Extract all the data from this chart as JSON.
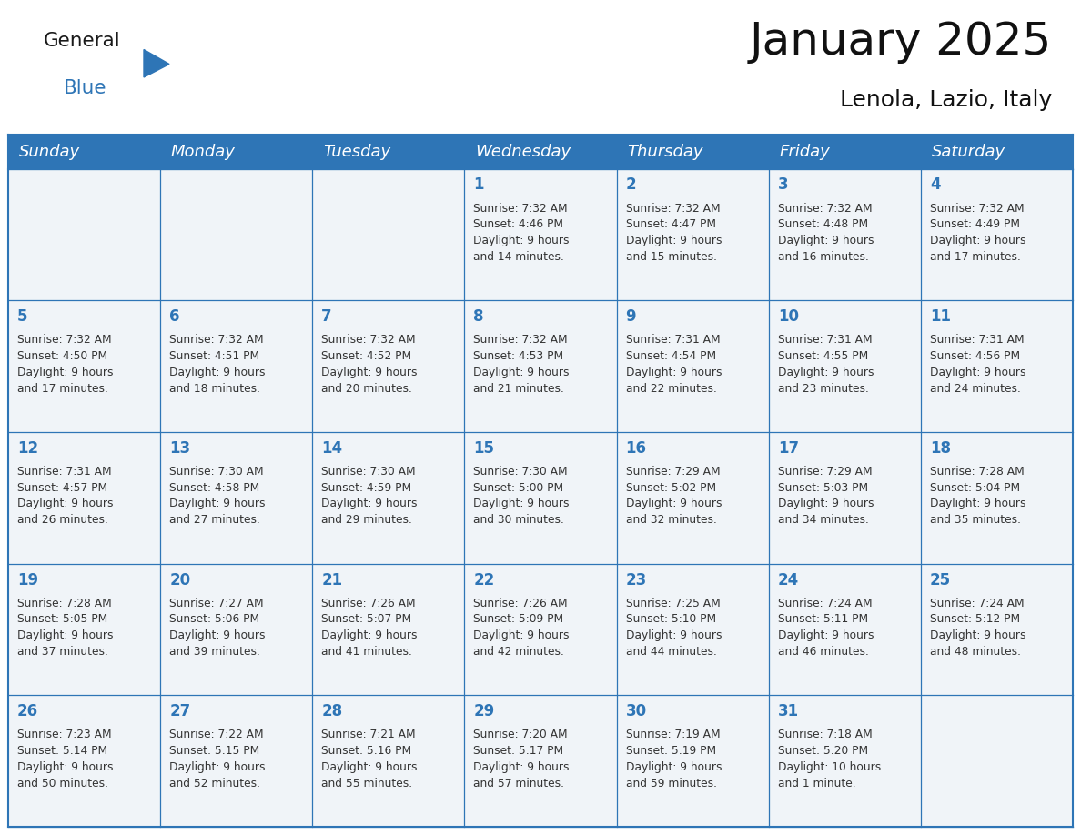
{
  "title": "January 2025",
  "subtitle": "Lenola, Lazio, Italy",
  "header_bg": "#2E75B6",
  "header_text_color": "#FFFFFF",
  "header_font_size": 13,
  "day_names": [
    "Sunday",
    "Monday",
    "Tuesday",
    "Wednesday",
    "Thursday",
    "Friday",
    "Saturday"
  ],
  "title_font_size": 36,
  "subtitle_font_size": 18,
  "cell_text_color": "#333333",
  "day_number_color": "#2E75B6",
  "line_color": "#2E75B6",
  "logo_general_color": "#1a1a1a",
  "logo_blue_color": "#2E75B6",
  "bg_color": "#FFFFFF",
  "cell_bg_color": "#F0F4F8",
  "calendar": [
    [
      {
        "day": "",
        "sunrise": "",
        "sunset": "",
        "dl1": "",
        "dl2": ""
      },
      {
        "day": "",
        "sunrise": "",
        "sunset": "",
        "dl1": "",
        "dl2": ""
      },
      {
        "day": "",
        "sunrise": "",
        "sunset": "",
        "dl1": "",
        "dl2": ""
      },
      {
        "day": "1",
        "sunrise": "Sunrise: 7:32 AM",
        "sunset": "Sunset: 4:46 PM",
        "dl1": "Daylight: 9 hours",
        "dl2": "and 14 minutes."
      },
      {
        "day": "2",
        "sunrise": "Sunrise: 7:32 AM",
        "sunset": "Sunset: 4:47 PM",
        "dl1": "Daylight: 9 hours",
        "dl2": "and 15 minutes."
      },
      {
        "day": "3",
        "sunrise": "Sunrise: 7:32 AM",
        "sunset": "Sunset: 4:48 PM",
        "dl1": "Daylight: 9 hours",
        "dl2": "and 16 minutes."
      },
      {
        "day": "4",
        "sunrise": "Sunrise: 7:32 AM",
        "sunset": "Sunset: 4:49 PM",
        "dl1": "Daylight: 9 hours",
        "dl2": "and 17 minutes."
      }
    ],
    [
      {
        "day": "5",
        "sunrise": "Sunrise: 7:32 AM",
        "sunset": "Sunset: 4:50 PM",
        "dl1": "Daylight: 9 hours",
        "dl2": "and 17 minutes."
      },
      {
        "day": "6",
        "sunrise": "Sunrise: 7:32 AM",
        "sunset": "Sunset: 4:51 PM",
        "dl1": "Daylight: 9 hours",
        "dl2": "and 18 minutes."
      },
      {
        "day": "7",
        "sunrise": "Sunrise: 7:32 AM",
        "sunset": "Sunset: 4:52 PM",
        "dl1": "Daylight: 9 hours",
        "dl2": "and 20 minutes."
      },
      {
        "day": "8",
        "sunrise": "Sunrise: 7:32 AM",
        "sunset": "Sunset: 4:53 PM",
        "dl1": "Daylight: 9 hours",
        "dl2": "and 21 minutes."
      },
      {
        "day": "9",
        "sunrise": "Sunrise: 7:31 AM",
        "sunset": "Sunset: 4:54 PM",
        "dl1": "Daylight: 9 hours",
        "dl2": "and 22 minutes."
      },
      {
        "day": "10",
        "sunrise": "Sunrise: 7:31 AM",
        "sunset": "Sunset: 4:55 PM",
        "dl1": "Daylight: 9 hours",
        "dl2": "and 23 minutes."
      },
      {
        "day": "11",
        "sunrise": "Sunrise: 7:31 AM",
        "sunset": "Sunset: 4:56 PM",
        "dl1": "Daylight: 9 hours",
        "dl2": "and 24 minutes."
      }
    ],
    [
      {
        "day": "12",
        "sunrise": "Sunrise: 7:31 AM",
        "sunset": "Sunset: 4:57 PM",
        "dl1": "Daylight: 9 hours",
        "dl2": "and 26 minutes."
      },
      {
        "day": "13",
        "sunrise": "Sunrise: 7:30 AM",
        "sunset": "Sunset: 4:58 PM",
        "dl1": "Daylight: 9 hours",
        "dl2": "and 27 minutes."
      },
      {
        "day": "14",
        "sunrise": "Sunrise: 7:30 AM",
        "sunset": "Sunset: 4:59 PM",
        "dl1": "Daylight: 9 hours",
        "dl2": "and 29 minutes."
      },
      {
        "day": "15",
        "sunrise": "Sunrise: 7:30 AM",
        "sunset": "Sunset: 5:00 PM",
        "dl1": "Daylight: 9 hours",
        "dl2": "and 30 minutes."
      },
      {
        "day": "16",
        "sunrise": "Sunrise: 7:29 AM",
        "sunset": "Sunset: 5:02 PM",
        "dl1": "Daylight: 9 hours",
        "dl2": "and 32 minutes."
      },
      {
        "day": "17",
        "sunrise": "Sunrise: 7:29 AM",
        "sunset": "Sunset: 5:03 PM",
        "dl1": "Daylight: 9 hours",
        "dl2": "and 34 minutes."
      },
      {
        "day": "18",
        "sunrise": "Sunrise: 7:28 AM",
        "sunset": "Sunset: 5:04 PM",
        "dl1": "Daylight: 9 hours",
        "dl2": "and 35 minutes."
      }
    ],
    [
      {
        "day": "19",
        "sunrise": "Sunrise: 7:28 AM",
        "sunset": "Sunset: 5:05 PM",
        "dl1": "Daylight: 9 hours",
        "dl2": "and 37 minutes."
      },
      {
        "day": "20",
        "sunrise": "Sunrise: 7:27 AM",
        "sunset": "Sunset: 5:06 PM",
        "dl1": "Daylight: 9 hours",
        "dl2": "and 39 minutes."
      },
      {
        "day": "21",
        "sunrise": "Sunrise: 7:26 AM",
        "sunset": "Sunset: 5:07 PM",
        "dl1": "Daylight: 9 hours",
        "dl2": "and 41 minutes."
      },
      {
        "day": "22",
        "sunrise": "Sunrise: 7:26 AM",
        "sunset": "Sunset: 5:09 PM",
        "dl1": "Daylight: 9 hours",
        "dl2": "and 42 minutes."
      },
      {
        "day": "23",
        "sunrise": "Sunrise: 7:25 AM",
        "sunset": "Sunset: 5:10 PM",
        "dl1": "Daylight: 9 hours",
        "dl2": "and 44 minutes."
      },
      {
        "day": "24",
        "sunrise": "Sunrise: 7:24 AM",
        "sunset": "Sunset: 5:11 PM",
        "dl1": "Daylight: 9 hours",
        "dl2": "and 46 minutes."
      },
      {
        "day": "25",
        "sunrise": "Sunrise: 7:24 AM",
        "sunset": "Sunset: 5:12 PM",
        "dl1": "Daylight: 9 hours",
        "dl2": "and 48 minutes."
      }
    ],
    [
      {
        "day": "26",
        "sunrise": "Sunrise: 7:23 AM",
        "sunset": "Sunset: 5:14 PM",
        "dl1": "Daylight: 9 hours",
        "dl2": "and 50 minutes."
      },
      {
        "day": "27",
        "sunrise": "Sunrise: 7:22 AM",
        "sunset": "Sunset: 5:15 PM",
        "dl1": "Daylight: 9 hours",
        "dl2": "and 52 minutes."
      },
      {
        "day": "28",
        "sunrise": "Sunrise: 7:21 AM",
        "sunset": "Sunset: 5:16 PM",
        "dl1": "Daylight: 9 hours",
        "dl2": "and 55 minutes."
      },
      {
        "day": "29",
        "sunrise": "Sunrise: 7:20 AM",
        "sunset": "Sunset: 5:17 PM",
        "dl1": "Daylight: 9 hours",
        "dl2": "and 57 minutes."
      },
      {
        "day": "30",
        "sunrise": "Sunrise: 7:19 AM",
        "sunset": "Sunset: 5:19 PM",
        "dl1": "Daylight: 9 hours",
        "dl2": "and 59 minutes."
      },
      {
        "day": "31",
        "sunrise": "Sunrise: 7:18 AM",
        "sunset": "Sunset: 5:20 PM",
        "dl1": "Daylight: 10 hours",
        "dl2": "and 1 minute."
      },
      {
        "day": "",
        "sunrise": "",
        "sunset": "",
        "dl1": "",
        "dl2": ""
      }
    ]
  ]
}
